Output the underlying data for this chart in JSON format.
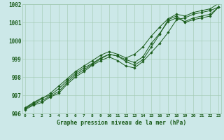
{
  "title": "Graphe pression niveau de la mer (hPa)",
  "xlabel_hours": [
    0,
    1,
    2,
    3,
    4,
    5,
    6,
    7,
    8,
    9,
    10,
    11,
    12,
    13,
    14,
    15,
    16,
    17,
    18,
    19,
    20,
    21,
    22,
    23
  ],
  "series": [
    [
      996.3,
      996.6,
      996.85,
      997.0,
      997.35,
      997.8,
      998.2,
      998.5,
      998.75,
      999.05,
      999.25,
      999.15,
      998.95,
      998.8,
      999.1,
      999.85,
      1000.4,
      1001.05,
      1001.25,
      1001.05,
      1001.25,
      1001.35,
      1001.45,
      1001.85
    ],
    [
      996.3,
      996.55,
      996.8,
      997.1,
      997.5,
      997.9,
      998.3,
      998.6,
      998.9,
      999.2,
      999.4,
      999.25,
      999.05,
      999.25,
      999.65,
      1000.25,
      1000.75,
      1001.2,
      1001.45,
      1001.35,
      1001.55,
      1001.65,
      1001.75,
      1002.05
    ],
    [
      996.25,
      996.5,
      996.7,
      996.95,
      997.2,
      997.7,
      998.1,
      998.4,
      998.7,
      999.0,
      999.25,
      999.15,
      998.85,
      998.65,
      998.95,
      999.65,
      1000.35,
      1001.15,
      1001.35,
      1001.0,
      1001.15,
      1001.25,
      1001.35,
      1001.85
    ],
    [
      996.2,
      996.45,
      996.6,
      996.9,
      997.1,
      997.6,
      998.0,
      998.3,
      998.65,
      998.9,
      999.1,
      998.9,
      998.6,
      998.5,
      998.85,
      999.35,
      999.85,
      1000.45,
      1001.15,
      1001.25,
      1001.45,
      1001.55,
      1001.65,
      1001.85
    ]
  ],
  "line_color": "#1a5c1a",
  "marker_color": "#1a5c1a",
  "bg_color": "#cce8e8",
  "grid_color": "#a0c8b0",
  "text_color": "#1a5c1a",
  "ylim": [
    996,
    1002
  ],
  "yticks": [
    996,
    997,
    998,
    999,
    1000,
    1001,
    1002
  ],
  "marker": "D",
  "markersize": 1.8,
  "linewidth": 0.7
}
